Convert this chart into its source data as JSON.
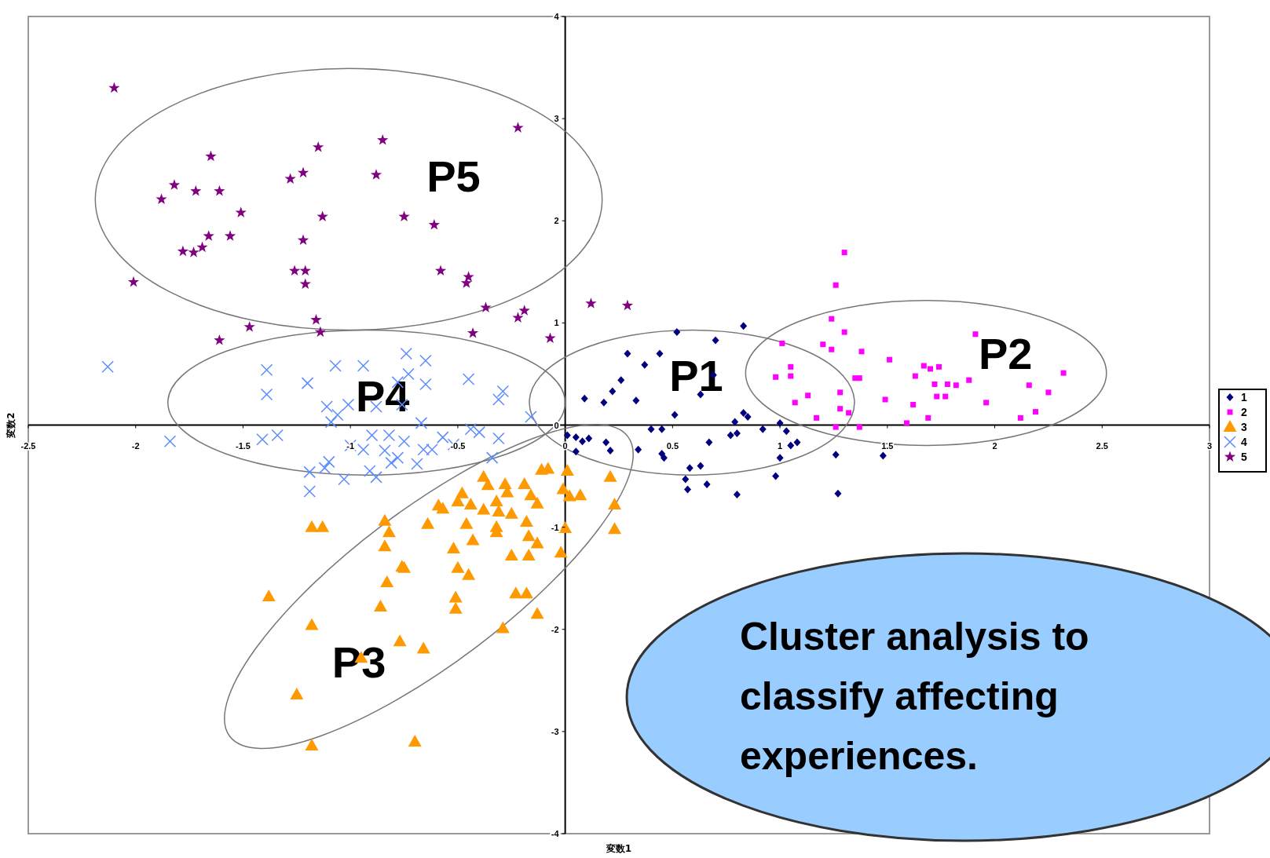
{
  "chart_data": {
    "type": "scatter",
    "xlabel": "変数1",
    "ylabel": "変数2",
    "xlim": [
      -2.5,
      3
    ],
    "ylim": [
      -4,
      4
    ],
    "xticks": [
      -2.5,
      -2,
      -1.5,
      -1,
      -0.5,
      0,
      0.5,
      1,
      1.5,
      2,
      2.5,
      3
    ],
    "yticks": [
      -4,
      -3,
      -2,
      -1,
      0,
      1,
      2,
      3,
      4
    ],
    "grid": false,
    "legend": "right",
    "annotations": [
      "P1",
      "P2",
      "P3",
      "P4",
      "P5",
      "Cluster analysis to classify affecting experiences."
    ],
    "series": [
      {
        "name": "1",
        "color": "#000080",
        "marker": "diamond",
        "x": [
          0.52,
          0.7,
          0.83,
          0.29,
          0.44,
          0.37,
          0.26,
          0.22,
          0.33,
          0.09,
          0.18,
          0.51,
          0.63,
          0.69,
          0.83,
          0.85,
          0.79,
          0.92,
          1.0,
          0.4,
          0.45,
          0.34,
          0.45,
          0.46,
          0.67,
          0.77,
          0.8,
          1.03,
          1.05,
          1.08,
          1.0,
          0.98,
          1.26,
          1.48,
          1.27,
          0.58,
          0.63,
          0.66,
          0.57,
          0.8,
          0.05,
          0.08,
          0.01,
          0.11,
          0.19,
          0.21,
          0.05,
          0.56
        ],
        "values": [
          0.91,
          0.83,
          0.97,
          0.7,
          0.7,
          0.59,
          0.44,
          0.33,
          0.24,
          0.26,
          0.22,
          0.1,
          0.3,
          0.49,
          0.12,
          0.08,
          0.03,
          -0.04,
          0.02,
          -0.04,
          -0.04,
          -0.24,
          -0.28,
          -0.32,
          -0.17,
          -0.1,
          -0.08,
          -0.06,
          -0.2,
          -0.17,
          -0.32,
          -0.5,
          -0.29,
          -0.3,
          -0.67,
          -0.42,
          -0.4,
          -0.58,
          -0.63,
          -0.68,
          -0.12,
          -0.16,
          -0.1,
          -0.13,
          -0.17,
          -0.25,
          -0.26,
          -0.53
        ]
      },
      {
        "name": "2",
        "color": "#ff00ff",
        "marker": "square",
        "x": [
          1.3,
          1.26,
          1.24,
          1.3,
          1.91,
          1.2,
          1.24,
          1.38,
          1.01,
          1.05,
          0.98,
          1.05,
          1.35,
          1.37,
          1.51,
          1.67,
          1.7,
          1.74,
          1.63,
          1.72,
          1.78,
          1.82,
          1.88,
          1.73,
          1.77,
          1.62,
          1.49,
          1.96,
          2.16,
          2.25,
          2.32,
          2.12,
          2.19,
          1.69,
          1.59,
          1.37,
          1.26,
          1.17,
          1.28,
          1.32,
          1.07,
          1.13,
          1.28
        ],
        "values": [
          1.69,
          1.37,
          1.04,
          0.91,
          0.89,
          0.79,
          0.74,
          0.72,
          0.8,
          0.57,
          0.47,
          0.48,
          0.46,
          0.46,
          0.64,
          0.58,
          0.55,
          0.57,
          0.48,
          0.4,
          0.4,
          0.39,
          0.44,
          0.28,
          0.28,
          0.2,
          0.25,
          0.22,
          0.39,
          0.32,
          0.51,
          0.07,
          0.13,
          0.07,
          0.02,
          -0.02,
          -0.02,
          0.07,
          0.16,
          0.12,
          0.22,
          0.29,
          0.32
        ]
      },
      {
        "name": "3",
        "color": "#ff9900",
        "marker": "triangle",
        "x": [
          -0.08,
          -0.11,
          0.01,
          -0.01,
          0.07,
          0.02,
          0.21,
          0.23,
          0.23,
          0.0,
          -0.02,
          -0.13,
          -0.17,
          -0.17,
          -0.25,
          -0.18,
          -0.25,
          -0.19,
          -0.16,
          -0.13,
          -0.38,
          -0.36,
          -0.28,
          -0.27,
          -0.32,
          -0.31,
          -0.38,
          -0.44,
          -0.48,
          -0.59,
          -0.57,
          -0.5,
          -0.32,
          -0.32,
          -0.46,
          -0.64,
          -0.43,
          -0.52,
          -0.5,
          -0.45,
          -0.76,
          -0.75,
          -0.84,
          -0.82,
          -0.84,
          -0.83,
          -0.51,
          -0.51,
          -0.86,
          -0.23,
          -0.18,
          -0.13,
          -0.29,
          -0.77,
          -0.66,
          -0.95,
          -1.18,
          -1.13,
          -1.38,
          -1.18,
          -1.25,
          -1.18,
          -0.7
        ],
        "values": [
          -0.43,
          -0.44,
          -0.45,
          -0.63,
          -0.69,
          -0.7,
          -0.51,
          -0.78,
          -1.02,
          -1.01,
          -1.25,
          -1.16,
          -1.09,
          -1.28,
          -1.28,
          -0.95,
          -0.87,
          -0.58,
          -0.69,
          -0.77,
          -0.51,
          -0.59,
          -0.58,
          -0.66,
          -0.75,
          -0.85,
          -0.83,
          -0.78,
          -0.67,
          -0.79,
          -0.82,
          -0.75,
          -1.0,
          -1.05,
          -0.97,
          -0.97,
          -1.13,
          -1.21,
          -1.4,
          -1.47,
          -1.39,
          -1.4,
          -0.94,
          -1.05,
          -1.19,
          -1.54,
          -1.69,
          -1.8,
          -1.78,
          -1.65,
          -1.65,
          -1.85,
          -1.99,
          -2.12,
          -2.19,
          -2.28,
          -1.0,
          -1.0,
          -1.68,
          -1.96,
          -2.64,
          -3.14,
          -3.1
        ]
      },
      {
        "name": "4",
        "color": "#5b8cff",
        "marker": "cross",
        "x": [
          -2.13,
          -1.84,
          -1.39,
          -1.39,
          -1.2,
          -1.07,
          -0.94,
          -1.11,
          -1.06,
          -1.09,
          -1.01,
          -0.88,
          -0.78,
          -0.74,
          -0.65,
          -0.73,
          -0.65,
          -0.45,
          -0.29,
          -0.31,
          -0.76,
          -0.67,
          -0.44,
          -1.41,
          -1.34,
          -0.9,
          -0.82,
          -0.75,
          -0.57,
          -0.52,
          -0.4,
          -0.31,
          -0.16,
          -1.0,
          -0.94,
          -0.84,
          -0.78,
          -0.69,
          -0.62,
          -0.66,
          -0.34,
          -1.1,
          -1.12,
          -1.19,
          -1.19,
          -1.03,
          -0.91,
          -0.88,
          -0.81
        ],
        "values": [
          0.57,
          -0.16,
          0.54,
          0.3,
          0.41,
          0.58,
          0.58,
          0.18,
          0.1,
          0.03,
          0.2,
          0.18,
          0.42,
          0.7,
          0.63,
          0.5,
          0.4,
          0.45,
          0.33,
          0.25,
          0.2,
          0.02,
          -0.04,
          -0.14,
          -0.1,
          -0.1,
          -0.1,
          -0.16,
          -0.12,
          -0.19,
          -0.07,
          -0.13,
          0.08,
          -0.2,
          -0.24,
          -0.25,
          -0.32,
          -0.38,
          -0.24,
          -0.24,
          -0.32,
          -0.36,
          -0.42,
          -0.46,
          -0.65,
          -0.53,
          -0.45,
          -0.51,
          -0.37
        ]
      },
      {
        "name": "5",
        "color": "#800080",
        "marker": "star",
        "x": [
          -2.1,
          -0.22,
          -0.85,
          -1.15,
          -1.65,
          -1.82,
          -1.88,
          -1.72,
          -1.61,
          -1.28,
          -1.22,
          -0.88,
          -1.51,
          -1.13,
          -0.75,
          -0.61,
          -1.66,
          -1.56,
          -1.22,
          -1.78,
          -1.73,
          -1.69,
          -1.26,
          -1.21,
          -1.21,
          -0.58,
          -0.45,
          -0.46,
          -2.01,
          -0.37,
          -0.19,
          -0.22,
          0.12,
          0.29,
          -1.16,
          -1.14,
          -1.47,
          -1.61,
          -0.43,
          -0.07
        ],
        "values": [
          3.3,
          2.91,
          2.79,
          2.72,
          2.63,
          2.35,
          2.21,
          2.29,
          2.29,
          2.41,
          2.47,
          2.45,
          2.08,
          2.04,
          2.04,
          1.96,
          1.85,
          1.85,
          1.81,
          1.7,
          1.69,
          1.74,
          1.51,
          1.51,
          1.38,
          1.51,
          1.45,
          1.39,
          1.4,
          1.15,
          1.12,
          1.05,
          1.19,
          1.17,
          1.03,
          0.91,
          0.96,
          0.83,
          0.9,
          0.85
        ]
      }
    ]
  }
}
